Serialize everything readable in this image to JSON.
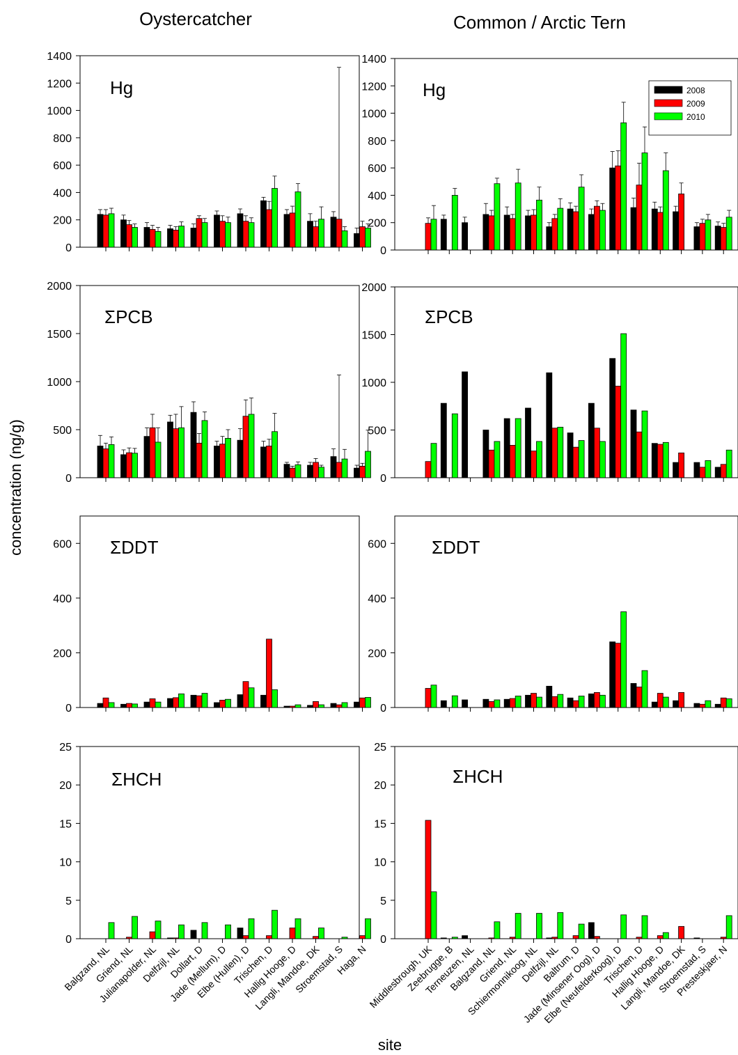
{
  "figure": {
    "col_titles": [
      "Oystercatcher",
      "Common / Arctic Tern"
    ],
    "ylabel": "concentration (ng/g)",
    "xlabel": "site",
    "legend": [
      "2008",
      "2009",
      "2010"
    ],
    "legend_location": "top-right of Common / Arctic Tern Hg panel",
    "colors": {
      "2008": "#000000",
      "2009": "#ff0000",
      "2010": "#00ff00"
    }
  },
  "chart_data": [
    {
      "type": "bar",
      "bird": "Oystercatcher",
      "panel_label": "Hg",
      "ylim": [
        0,
        1400
      ],
      "yticks": [
        "0",
        "200",
        "400",
        "600",
        "800",
        "1000",
        "1200",
        "1400"
      ],
      "categories": [
        "Balgzand, NL",
        "Griend, NL",
        "Julianapolder, NL",
        "Delfzijl, NL",
        "Dollart, D",
        "Jade (Mellum), D",
        "Elbe (Hullen), D",
        "Trischen, D",
        "Hallig Hooge, D",
        "Langli, Mandoe, DK",
        "Stroemstad, S",
        "Haga, N"
      ],
      "series": [
        {
          "name": "2008",
          "values": [
            240,
            200,
            145,
            135,
            140,
            235,
            245,
            340,
            240,
            190,
            220,
            100
          ],
          "err": [
            35,
            35,
            35,
            25,
            30,
            30,
            35,
            25,
            35,
            55,
            40,
            40
          ]
        },
        {
          "name": "2009",
          "values": [
            235,
            165,
            130,
            125,
            210,
            190,
            190,
            275,
            250,
            150,
            205,
            150
          ],
          "err": [
            40,
            30,
            30,
            25,
            20,
            40,
            40,
            60,
            50,
            40,
            1110,
            40
          ]
        },
        {
          "name": "2010",
          "values": [
            245,
            145,
            115,
            155,
            180,
            180,
            180,
            430,
            405,
            205,
            120,
            140
          ],
          "err": [
            40,
            25,
            30,
            30,
            30,
            40,
            35,
            90,
            60,
            90,
            30,
            30
          ]
        }
      ]
    },
    {
      "type": "bar",
      "bird": "Common / Arctic Tern",
      "panel_label": "Hg",
      "ylim": [
        0,
        1400
      ],
      "yticks": [
        "0",
        "200",
        "400",
        "600",
        "800",
        "1000",
        "1200",
        "1400"
      ],
      "categories": [
        "Middlesbrough, UK",
        "Zeebrugge, B",
        "Terneuzen, NL",
        "Balgzand, NL",
        "Griend, NL",
        "Schiermonnikoog, NL",
        "Delfzijl, NL",
        "Baltrum, D",
        "Jade (Minsener Oog), D",
        "Elbe (Neufelderkoog), D",
        "Trischen, D",
        "Hallig Hooge, D",
        "Langli, Mandoe, DK",
        "Stroemstad, S",
        "Presteskjaer, N"
      ],
      "series": [
        {
          "name": "2008",
          "values": [
            null,
            225,
            200,
            260,
            255,
            250,
            170,
            300,
            260,
            600,
            310,
            300,
            280,
            170,
            175
          ],
          "err": [
            0,
            30,
            40,
            80,
            60,
            40,
            30,
            45,
            40,
            120,
            70,
            50,
            40,
            30,
            30
          ]
        },
        {
          "name": "2009",
          "values": [
            195,
            null,
            null,
            250,
            230,
            255,
            230,
            280,
            320,
            615,
            475,
            275,
            410,
            195,
            165
          ],
          "err": [
            40,
            0,
            0,
            40,
            30,
            40,
            30,
            40,
            40,
            110,
            160,
            40,
            80,
            30,
            30
          ]
        },
        {
          "name": "2010",
          "values": [
            225,
            400,
            null,
            485,
            490,
            365,
            305,
            460,
            290,
            930,
            710,
            580,
            0,
            220,
            240
          ],
          "err": [
            100,
            50,
            0,
            40,
            100,
            95,
            70,
            90,
            50,
            150,
            190,
            130,
            0,
            40,
            50
          ]
        }
      ]
    },
    {
      "type": "bar",
      "bird": "Oystercatcher",
      "panel_label": "ΣPCB",
      "ylim": [
        0,
        2000
      ],
      "yticks": [
        "0",
        "500",
        "1000",
        "1500",
        "2000"
      ],
      "categories": [
        "Balgzand, NL",
        "Griend, NL",
        "Julianapolder, NL",
        "Delfzijl, NL",
        "Dollart, D",
        "Jade (Mellum), D",
        "Elbe (Hullen), D",
        "Trischen, D",
        "Hallig Hooge, D",
        "Langli, Mandoe, DK",
        "Stroemstad, S",
        "Haga, N"
      ],
      "series": [
        {
          "name": "2008",
          "values": [
            330,
            240,
            430,
            580,
            680,
            330,
            390,
            320,
            140,
            130,
            220,
            100
          ],
          "err": [
            110,
            50,
            90,
            70,
            110,
            50,
            120,
            60,
            20,
            30,
            80,
            30
          ]
        },
        {
          "name": "2009",
          "values": [
            300,
            260,
            520,
            510,
            360,
            350,
            640,
            330,
            100,
            160,
            160,
            120
          ],
          "err": [
            60,
            50,
            140,
            150,
            100,
            80,
            170,
            70,
            20,
            40,
            910,
            30
          ]
        },
        {
          "name": "2010",
          "values": [
            345,
            255,
            370,
            520,
            595,
            410,
            660,
            480,
            135,
            110,
            195,
            275
          ],
          "err": [
            80,
            50,
            150,
            220,
            90,
            90,
            170,
            190,
            30,
            20,
            100,
            220
          ]
        }
      ]
    },
    {
      "type": "bar",
      "bird": "Common / Arctic Tern",
      "panel_label": "ΣPCB",
      "ylim": [
        0,
        2000
      ],
      "yticks": [
        "0",
        "500",
        "1000",
        "1500",
        "2000"
      ],
      "categories": [
        "Middlesbrough, UK",
        "Zeebrugge, B",
        "Terneuzen, NL",
        "Balgzand, NL",
        "Griend, NL",
        "Schiermonnikoog, NL",
        "Delfzijl, NL",
        "Baltrum, D",
        "Jade (Minsener Oog), D",
        "Elbe (Neufelderkoog), D",
        "Trischen, D",
        "Hallig Hooge, D",
        "Langli, Mandoe, DK",
        "Stroemstad, S",
        "Presteskjaer, N"
      ],
      "series": [
        {
          "name": "2008",
          "values": [
            null,
            780,
            1110,
            500,
            620,
            730,
            1100,
            470,
            780,
            1250,
            710,
            360,
            160,
            160,
            110
          ]
        },
        {
          "name": "2009",
          "values": [
            170,
            null,
            null,
            290,
            340,
            280,
            520,
            320,
            520,
            960,
            480,
            350,
            260,
            110,
            140
          ]
        },
        {
          "name": "2010",
          "values": [
            360,
            670,
            null,
            380,
            620,
            380,
            530,
            390,
            380,
            1510,
            700,
            370,
            0,
            180,
            290
          ]
        }
      ]
    },
    {
      "type": "bar",
      "bird": "Oystercatcher",
      "panel_label": "ΣDDT",
      "ylim": [
        0,
        700
      ],
      "yticks": [
        "0",
        "200",
        "400",
        "600"
      ],
      "categories": [
        "Balgzand, NL",
        "Griend, NL",
        "Julianapolder, NL",
        "Delfzijl, NL",
        "Dollart, D",
        "Jade (Mellum), D",
        "Elbe (Hullen), D",
        "Trischen, D",
        "Hallig Hooge, D",
        "Langli, Mandoe, DK",
        "Stroemstad, S",
        "Haga, N"
      ],
      "series": [
        {
          "name": "2008",
          "values": [
            15,
            12,
            20,
            33,
            45,
            18,
            47,
            45,
            5,
            8,
            15,
            20
          ]
        },
        {
          "name": "2009",
          "values": [
            35,
            15,
            32,
            36,
            43,
            27,
            95,
            250,
            5,
            22,
            10,
            35
          ]
        },
        {
          "name": "2010",
          "values": [
            18,
            13,
            20,
            50,
            52,
            30,
            72,
            65,
            10,
            10,
            18,
            37
          ]
        }
      ]
    },
    {
      "type": "bar",
      "bird": "Common / Arctic Tern",
      "panel_label": "ΣDDT",
      "ylim": [
        0,
        700
      ],
      "yticks": [
        "0",
        "200",
        "400",
        "600"
      ],
      "categories": [
        "Middlesbrough, UK",
        "Zeebrugge, B",
        "Terneuzen, NL",
        "Balgzand, NL",
        "Griend, NL",
        "Schiermonnikoog, NL",
        "Delfzijl, NL",
        "Baltrum, D",
        "Jade (Minsener Oog), D",
        "Elbe (Neufelderkoog), D",
        "Trischen, D",
        "Hallig Hooge, D",
        "Langli, Mandoe, DK",
        "Stroemstad, S",
        "Presteskjaer, N"
      ],
      "series": [
        {
          "name": "2008",
          "values": [
            null,
            25,
            28,
            30,
            30,
            45,
            78,
            35,
            50,
            240,
            88,
            20,
            25,
            15,
            12
          ]
        },
        {
          "name": "2009",
          "values": [
            70,
            null,
            null,
            22,
            33,
            52,
            40,
            25,
            55,
            235,
            75,
            52,
            55,
            12,
            35
          ]
        },
        {
          "name": "2010",
          "values": [
            82,
            43,
            null,
            28,
            42,
            38,
            48,
            42,
            45,
            350,
            135,
            38,
            0,
            25,
            32
          ]
        }
      ]
    },
    {
      "type": "bar",
      "bird": "Oystercatcher",
      "panel_label": "ΣHCH",
      "ylim": [
        0,
        25
      ],
      "yticks": [
        "0",
        "5",
        "10",
        "15",
        "20",
        "25"
      ],
      "categories": [
        "Balgzand, NL",
        "Griend, NL",
        "Julianapolder, NL",
        "Delfzijl, NL",
        "Dollart, D",
        "Jade (Mellum), D",
        "Elbe (Hullen), D",
        "Trischen, D",
        "Hallig Hooge, D",
        "Langli, Mandoe, DK",
        "Stroemstad, S",
        "Haga, N"
      ],
      "series": [
        {
          "name": "2008",
          "values": [
            0,
            0,
            0,
            0.1,
            1.1,
            0,
            1.4,
            0,
            0,
            0,
            0,
            0
          ]
        },
        {
          "name": "2009",
          "values": [
            0,
            0.2,
            0.9,
            0.1,
            0,
            0,
            0.4,
            0.4,
            1.4,
            0.3,
            0,
            0.4
          ]
        },
        {
          "name": "2010",
          "values": [
            2.1,
            2.9,
            2.3,
            1.8,
            2.1,
            1.8,
            2.6,
            3.7,
            2.6,
            1.4,
            0.2,
            2.6
          ]
        }
      ]
    },
    {
      "type": "bar",
      "bird": "Common / Arctic Tern",
      "panel_label": "ΣHCH",
      "ylim": [
        0,
        25
      ],
      "yticks": [
        "0",
        "5",
        "10",
        "15",
        "20",
        "25"
      ],
      "categories": [
        "Middlesbrough, UK",
        "Zeebrugge, B",
        "Terneuzen, NL",
        "Balgzand, NL",
        "Griend, NL",
        "Schiermonnikoog, NL",
        "Delfzijl, NL",
        "Baltrum, D",
        "Jade (Minsener Oog), D",
        "Elbe (Neufelderkoog), D",
        "Trischen, D",
        "Hallig Hooge, D",
        "Langli, Mandoe, DK",
        "Stroemstad, S",
        "Presteskjaer, N"
      ],
      "series": [
        {
          "name": "2008",
          "values": [
            null,
            0.1,
            0.4,
            0,
            0,
            0,
            0.1,
            0,
            2.1,
            0,
            0,
            0,
            0,
            0.1,
            0
          ]
        },
        {
          "name": "2009",
          "values": [
            15.4,
            null,
            null,
            0.1,
            0.2,
            0,
            0.2,
            0.4,
            0.3,
            0,
            0.2,
            0.4,
            1.6,
            0,
            0.2
          ]
        },
        {
          "name": "2010",
          "values": [
            6.1,
            0.2,
            null,
            2.2,
            3.3,
            3.3,
            3.4,
            1.9,
            0,
            3.1,
            3.0,
            0.8,
            0,
            0,
            3.0
          ]
        }
      ]
    }
  ]
}
